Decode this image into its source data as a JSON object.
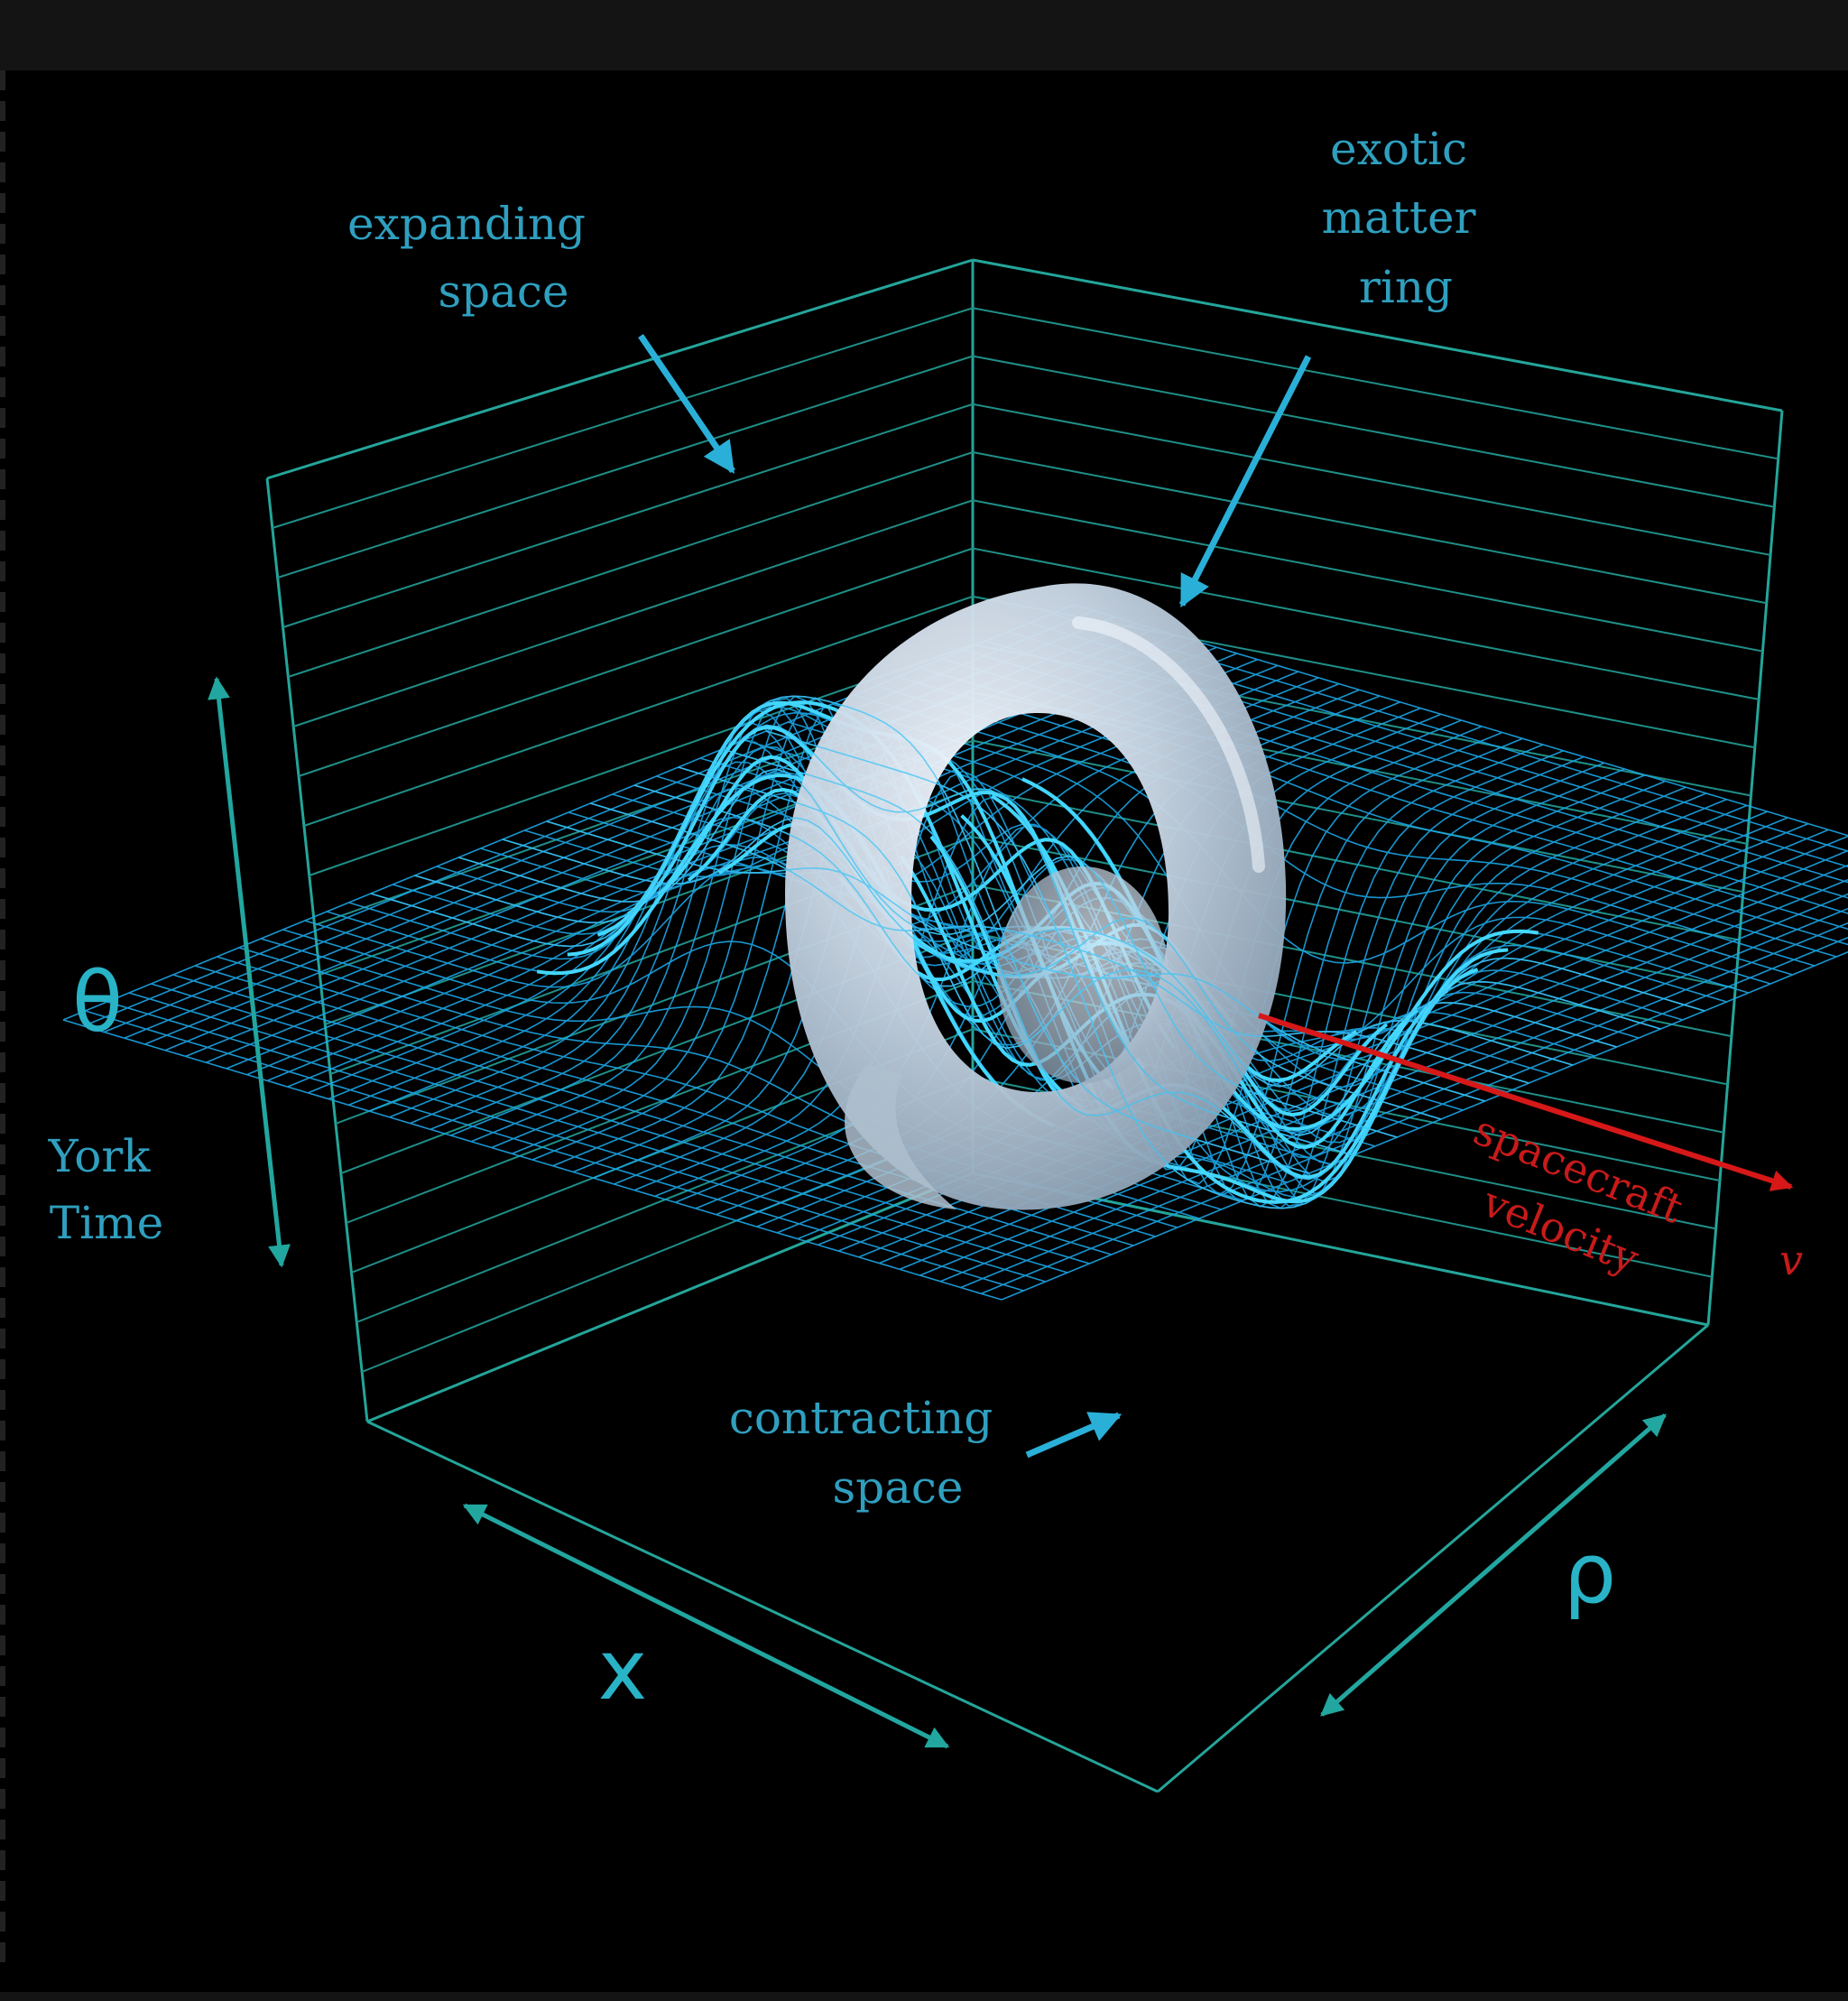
{
  "annotations": {
    "expanding": [
      "expanding",
      "space"
    ],
    "exotic": [
      "exotic",
      "matter",
      "ring"
    ],
    "contracting": [
      "contracting",
      "space"
    ],
    "york": [
      "York",
      "Time"
    ],
    "spacecraft": [
      "spacecraft",
      "velocity"
    ],
    "velocity_symbol": "v"
  },
  "axes": {
    "theta": "θ",
    "x": "x",
    "rho": "ρ"
  },
  "colors": {
    "background": "#000000",
    "frame": "#24a59a",
    "mesh": "#1ba6e6",
    "mesh_highlight": "#43d7ff",
    "ring": "#c5d3e0",
    "velocity": "#d61818"
  }
}
